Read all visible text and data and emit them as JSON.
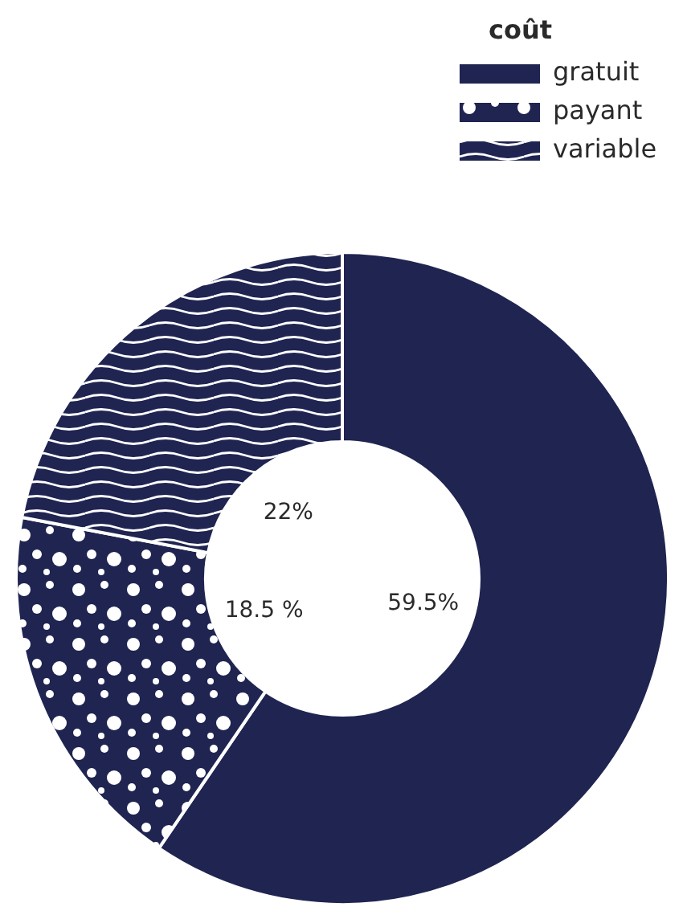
{
  "chart_data": {
    "type": "donut",
    "legend_title": "coût",
    "categories": [
      "gratuit",
      "payant",
      "variable"
    ],
    "values": [
      59.5,
      18.5,
      22
    ],
    "value_labels": [
      "59.5%",
      "18.5 %",
      "22%"
    ],
    "colors": [
      "#1f2451",
      "#1f2451",
      "#1f2451"
    ],
    "legend": "top right"
  }
}
